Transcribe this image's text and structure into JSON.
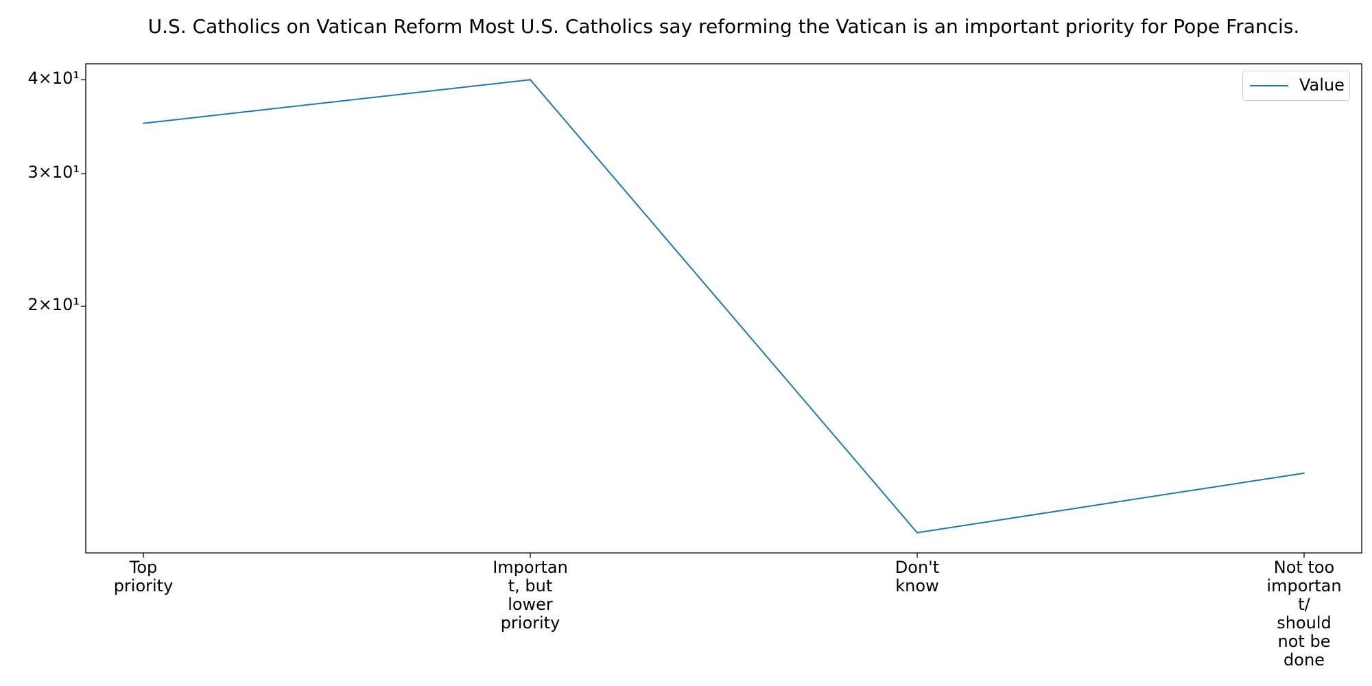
{
  "chart_data": {
    "type": "line",
    "title": "U.S. Catholics on Vatican Reform Most U.S. Catholics say reforming the Vatican is an important priority for Pope Francis.",
    "xlabel": "",
    "ylabel": "",
    "categories": [
      "Top\npriority",
      "Importan\nt, but\nlower\npriority",
      "Don't\nknow",
      "Not too\nimportan\nt/\nshould\nnot be\ndone"
    ],
    "series": [
      {
        "name": "Value",
        "values": [
          35,
          40,
          10,
          12
        ],
        "color": "#1f77b4"
      }
    ],
    "y_scale": "log",
    "ylim": [
      9.4,
      42
    ],
    "yticks": [
      {
        "value": 20,
        "label": "2×10¹"
      },
      {
        "value": 30,
        "label": "3×10¹"
      },
      {
        "value": 40,
        "label": "4×10¹"
      }
    ],
    "grid": false,
    "legend_position": "top-right"
  }
}
